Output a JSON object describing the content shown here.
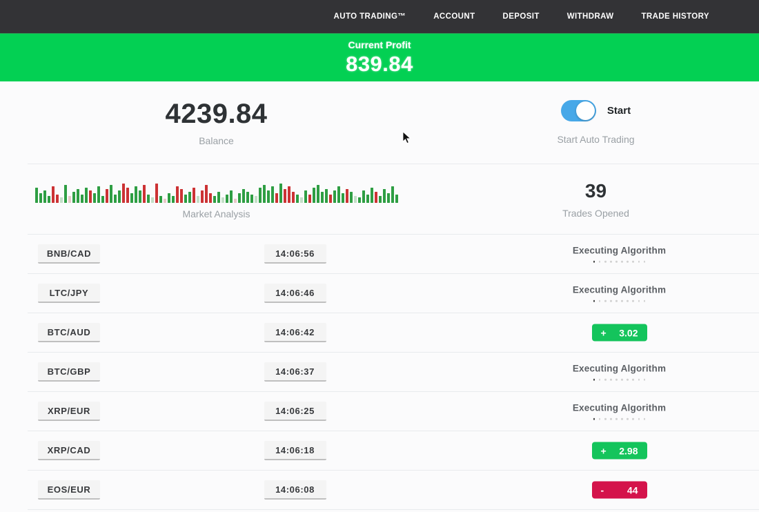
{
  "nav": {
    "items": [
      {
        "label": "AUTO TRADING™"
      },
      {
        "label": "ACCOUNT"
      },
      {
        "label": "DEPOSIT"
      },
      {
        "label": "WITHDRAW"
      },
      {
        "label": "TRADE HISTORY"
      }
    ]
  },
  "banner": {
    "label": "Current Profit",
    "value": "839.84",
    "bg_color": "#03d053"
  },
  "stats": {
    "balance": {
      "value": "4239.84",
      "label": "Balance"
    },
    "auto_trading": {
      "toggle_on": true,
      "toggle_color": "#47a8e8",
      "toggle_label": "Start",
      "label": "Start Auto Trading"
    },
    "market_analysis": {
      "label": "Market Analysis",
      "bar_colors": {
        "g": "#2e9e43",
        "r": "#cc3234",
        "lg": "#c3dfc7",
        "lr": "#e9c8c8"
      },
      "bars": [
        [
          22,
          "g"
        ],
        [
          14,
          "g"
        ],
        [
          18,
          "g"
        ],
        [
          10,
          "g"
        ],
        [
          24,
          "r"
        ],
        [
          12,
          "r"
        ],
        [
          8,
          "lg"
        ],
        [
          26,
          "g"
        ],
        [
          10,
          "lr"
        ],
        [
          16,
          "g"
        ],
        [
          20,
          "g"
        ],
        [
          12,
          "g"
        ],
        [
          22,
          "g"
        ],
        [
          18,
          "r"
        ],
        [
          14,
          "g"
        ],
        [
          24,
          "g"
        ],
        [
          10,
          "g"
        ],
        [
          20,
          "r"
        ],
        [
          26,
          "g"
        ],
        [
          12,
          "g"
        ],
        [
          18,
          "g"
        ],
        [
          28,
          "r"
        ],
        [
          22,
          "r"
        ],
        [
          14,
          "g"
        ],
        [
          24,
          "g"
        ],
        [
          18,
          "g"
        ],
        [
          26,
          "r"
        ],
        [
          12,
          "g"
        ],
        [
          8,
          "lg"
        ],
        [
          28,
          "r"
        ],
        [
          10,
          "g"
        ],
        [
          6,
          "lr"
        ],
        [
          14,
          "g"
        ],
        [
          10,
          "g"
        ],
        [
          24,
          "r"
        ],
        [
          20,
          "r"
        ],
        [
          12,
          "g"
        ],
        [
          16,
          "g"
        ],
        [
          22,
          "r"
        ],
        [
          10,
          "lg"
        ],
        [
          18,
          "r"
        ],
        [
          26,
          "r"
        ],
        [
          14,
          "r"
        ],
        [
          10,
          "g"
        ],
        [
          16,
          "g"
        ],
        [
          8,
          "lg"
        ],
        [
          12,
          "g"
        ],
        [
          18,
          "g"
        ],
        [
          6,
          "lr"
        ],
        [
          14,
          "g"
        ],
        [
          20,
          "g"
        ],
        [
          16,
          "g"
        ],
        [
          12,
          "g"
        ],
        [
          10,
          "lg"
        ],
        [
          22,
          "g"
        ],
        [
          26,
          "g"
        ],
        [
          18,
          "g"
        ],
        [
          24,
          "g"
        ],
        [
          14,
          "r"
        ],
        [
          28,
          "g"
        ],
        [
          20,
          "r"
        ],
        [
          24,
          "r"
        ],
        [
          16,
          "r"
        ],
        [
          12,
          "g"
        ],
        [
          8,
          "lg"
        ],
        [
          18,
          "g"
        ],
        [
          12,
          "r"
        ],
        [
          22,
          "g"
        ],
        [
          26,
          "g"
        ],
        [
          16,
          "g"
        ],
        [
          20,
          "g"
        ],
        [
          12,
          "r"
        ],
        [
          18,
          "g"
        ],
        [
          24,
          "g"
        ],
        [
          14,
          "g"
        ],
        [
          20,
          "r"
        ],
        [
          16,
          "g"
        ],
        [
          10,
          "lg"
        ],
        [
          8,
          "g"
        ],
        [
          18,
          "g"
        ],
        [
          12,
          "g"
        ],
        [
          22,
          "g"
        ],
        [
          16,
          "r"
        ],
        [
          10,
          "g"
        ],
        [
          20,
          "g"
        ],
        [
          14,
          "g"
        ],
        [
          24,
          "g"
        ],
        [
          12,
          "g"
        ]
      ]
    },
    "trades_opened": {
      "value": "39",
      "label": "Trades Opened"
    }
  },
  "trades": {
    "rows": [
      {
        "pair": "BNB/CAD",
        "time": "14:06:56",
        "status": "executing",
        "status_label": "Executing Algorithm",
        "dots_total": 10,
        "dots_active": 1
      },
      {
        "pair": "LTC/JPY",
        "time": "14:06:46",
        "status": "executing",
        "status_label": "Executing Algorithm",
        "dots_total": 10,
        "dots_active": 1
      },
      {
        "pair": "BTC/AUD",
        "time": "14:06:42",
        "status": "win",
        "sign": "+",
        "amount": "3.02"
      },
      {
        "pair": "BTC/GBP",
        "time": "14:06:37",
        "status": "executing",
        "status_label": "Executing Algorithm",
        "dots_total": 10,
        "dots_active": 1
      },
      {
        "pair": "XRP/EUR",
        "time": "14:06:25",
        "status": "executing",
        "status_label": "Executing Algorithm",
        "dots_total": 10,
        "dots_active": 1
      },
      {
        "pair": "XRP/CAD",
        "time": "14:06:18",
        "status": "win",
        "sign": "+",
        "amount": "2.98"
      },
      {
        "pair": "EOS/EUR",
        "time": "14:06:08",
        "status": "loss",
        "sign": "-",
        "amount": "44"
      }
    ]
  },
  "colors": {
    "nav_bg": "#333336",
    "banner_green": "#03d053",
    "profit_green": "#14c45c",
    "loss_red": "#d4134b",
    "toggle_blue": "#47a8e8"
  }
}
